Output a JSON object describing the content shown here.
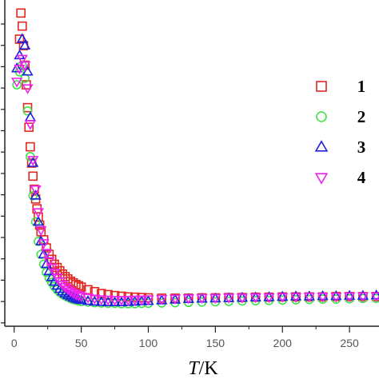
{
  "chart_data": {
    "type": "scatter",
    "title": "",
    "xlabel_italic": "T",
    "xlabel_unit": "/K",
    "ylabel": "",
    "xlim": [
      -7,
      272
    ],
    "ylim": [
      0,
      1
    ],
    "xticks": [
      0,
      50,
      100,
      150,
      200,
      250
    ],
    "xtick_labels": [
      "0",
      "50",
      "100",
      "150",
      "200",
      "250"
    ],
    "grid": false,
    "legend_position": "right",
    "series": [
      {
        "name": "1",
        "marker": "square",
        "color": "#e0281e",
        "x": [
          4,
          5,
          6,
          7,
          8,
          9,
          10,
          11,
          12,
          13,
          14,
          15,
          16,
          17,
          18,
          19,
          20,
          22,
          24,
          26,
          28,
          30,
          32,
          34,
          36,
          38,
          40,
          42,
          44,
          46,
          48,
          50,
          55,
          60,
          65,
          70,
          75,
          80,
          85,
          90,
          95,
          100,
          110,
          120,
          130,
          140,
          150,
          160,
          170,
          180,
          190,
          200,
          210,
          220,
          230,
          240,
          250,
          260,
          270
        ],
        "y": [
          0.88,
          0.96,
          0.92,
          0.86,
          0.8,
          0.74,
          0.67,
          0.61,
          0.55,
          0.5,
          0.46,
          0.42,
          0.39,
          0.36,
          0.335,
          0.31,
          0.29,
          0.265,
          0.24,
          0.22,
          0.205,
          0.19,
          0.18,
          0.17,
          0.16,
          0.152,
          0.145,
          0.138,
          0.133,
          0.128,
          0.124,
          0.12,
          0.112,
          0.106,
          0.1,
          0.097,
          0.094,
          0.092,
          0.09,
          0.089,
          0.088,
          0.087,
          0.086,
          0.086,
          0.086,
          0.087,
          0.087,
          0.088,
          0.088,
          0.089,
          0.089,
          0.09,
          0.09,
          0.09,
          0.09,
          0.091,
          0.091,
          0.091,
          0.091
        ]
      },
      {
        "name": "2",
        "marker": "circle",
        "color": "#3ee24a",
        "x": [
          2,
          4,
          6,
          8,
          10,
          12,
          14,
          16,
          18,
          20,
          22,
          24,
          26,
          28,
          30,
          32,
          34,
          36,
          38,
          40,
          42,
          44,
          46,
          48,
          50,
          55,
          60,
          65,
          70,
          75,
          80,
          85,
          90,
          95,
          100,
          110,
          120,
          130,
          140,
          150,
          160,
          170,
          180,
          190,
          200,
          210,
          220,
          230,
          240,
          250,
          260,
          270
        ],
        "y": [
          0.74,
          0.78,
          0.8,
          0.76,
          0.66,
          0.52,
          0.4,
          0.32,
          0.26,
          0.22,
          0.19,
          0.165,
          0.148,
          0.134,
          0.122,
          0.112,
          0.104,
          0.098,
          0.093,
          0.089,
          0.085,
          0.082,
          0.08,
          0.078,
          0.076,
          0.074,
          0.072,
          0.071,
          0.07,
          0.07,
          0.069,
          0.069,
          0.069,
          0.07,
          0.07,
          0.071,
          0.072,
          0.073,
          0.074,
          0.075,
          0.076,
          0.077,
          0.078,
          0.079,
          0.08,
          0.081,
          0.082,
          0.083,
          0.083,
          0.084,
          0.085,
          0.085
        ]
      },
      {
        "name": "3",
        "marker": "triangle-up",
        "color": "#1f1fe0",
        "x": [
          2,
          4,
          6,
          8,
          10,
          12,
          14,
          16,
          18,
          20,
          22,
          24,
          26,
          28,
          30,
          32,
          34,
          36,
          38,
          40,
          42,
          44,
          46,
          48,
          50,
          55,
          60,
          65,
          70,
          75,
          80,
          85,
          90,
          95,
          100,
          110,
          120,
          130,
          140,
          150,
          160,
          170,
          180,
          190,
          200,
          210,
          220,
          230,
          240,
          250,
          260,
          270
        ],
        "y": [
          0.79,
          0.83,
          0.88,
          0.86,
          0.78,
          0.64,
          0.5,
          0.4,
          0.32,
          0.26,
          0.22,
          0.19,
          0.168,
          0.15,
          0.136,
          0.124,
          0.114,
          0.106,
          0.1,
          0.095,
          0.091,
          0.087,
          0.084,
          0.082,
          0.08,
          0.077,
          0.075,
          0.074,
          0.073,
          0.073,
          0.073,
          0.074,
          0.075,
          0.076,
          0.077,
          0.079,
          0.081,
          0.083,
          0.084,
          0.085,
          0.086,
          0.087,
          0.088,
          0.089,
          0.09,
          0.091,
          0.091,
          0.092,
          0.092,
          0.093,
          0.093,
          0.094
        ]
      },
      {
        "name": "4",
        "marker": "triangle-down",
        "color": "#ee22ee",
        "x": [
          2,
          4,
          6,
          8,
          10,
          12,
          14,
          16,
          18,
          20,
          22,
          24,
          26,
          28,
          30,
          32,
          34,
          36,
          38,
          40,
          42,
          44,
          46,
          48,
          50,
          55,
          60,
          65,
          70,
          75,
          80,
          85,
          90,
          95,
          100,
          110,
          120,
          130,
          140,
          150,
          160,
          170,
          180,
          190,
          200,
          210,
          220,
          230,
          240,
          250,
          260,
          270
        ],
        "y": [
          0.75,
          0.79,
          0.82,
          0.8,
          0.73,
          0.62,
          0.51,
          0.42,
          0.35,
          0.295,
          0.255,
          0.225,
          0.2,
          0.18,
          0.164,
          0.15,
          0.138,
          0.128,
          0.12,
          0.113,
          0.107,
          0.102,
          0.098,
          0.095,
          0.092,
          0.088,
          0.085,
          0.083,
          0.082,
          0.081,
          0.081,
          0.081,
          0.082,
          0.082,
          0.083,
          0.084,
          0.085,
          0.086,
          0.087,
          0.087,
          0.088,
          0.088,
          0.089,
          0.089,
          0.09,
          0.09,
          0.091,
          0.091,
          0.091,
          0.092,
          0.092,
          0.092
        ]
      }
    ]
  }
}
